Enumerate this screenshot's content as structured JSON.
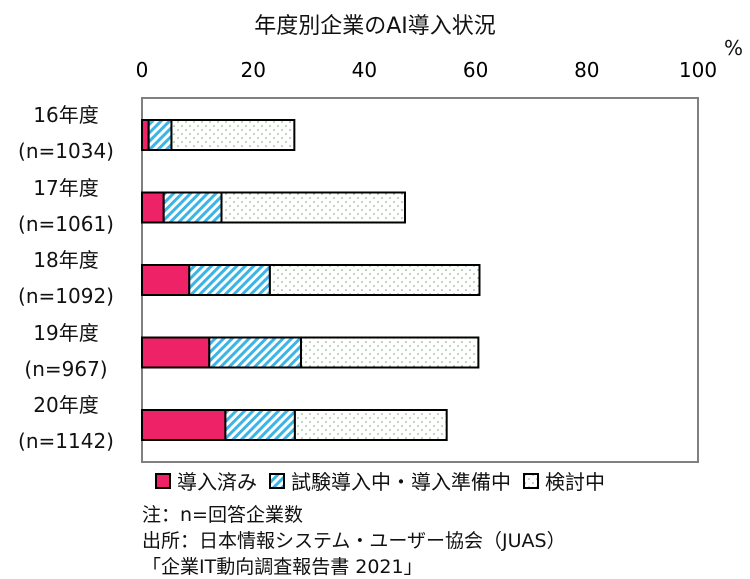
{
  "chart_data": {
    "type": "bar",
    "orientation": "horizontal",
    "stacked": true,
    "title": "年度別企業のAI導入状況",
    "unit": "%",
    "xlim": [
      0,
      100
    ],
    "xticks": [
      "0",
      "20",
      "40",
      "60",
      "80",
      "100"
    ],
    "grid": false,
    "legend_position": "bottom",
    "categories": [
      {
        "year": "16年度",
        "n": "(n=1034)"
      },
      {
        "year": "17年度",
        "n": "(n=1061)"
      },
      {
        "year": "18年度",
        "n": "(n=1092)"
      },
      {
        "year": "19年度",
        "n": "(n=967)"
      },
      {
        "year": "20年度",
        "n": "(n=1142)"
      }
    ],
    "series": [
      {
        "name": "導入済み",
        "color": "#ee2266",
        "pattern": "solid",
        "values": [
          1.2,
          3.9,
          8.5,
          12.1,
          15.0
        ]
      },
      {
        "name": "試験導入中・導入準備中",
        "color": "#3bb4e6",
        "pattern": "diagonal-stripes",
        "values": [
          4.1,
          10.4,
          14.5,
          16.5,
          12.5
        ]
      },
      {
        "name": "検討中",
        "color": "#ffffff",
        "pattern": "dots",
        "values": [
          22.1,
          33.0,
          37.7,
          31.9,
          27.3
        ]
      }
    ]
  },
  "notes": {
    "line1": "注：n=回答企業数",
    "line2": "出所：日本情報システム・ユーザー協会（JUAS）",
    "line3": "「企業IT動向調査報告書 2021」"
  }
}
